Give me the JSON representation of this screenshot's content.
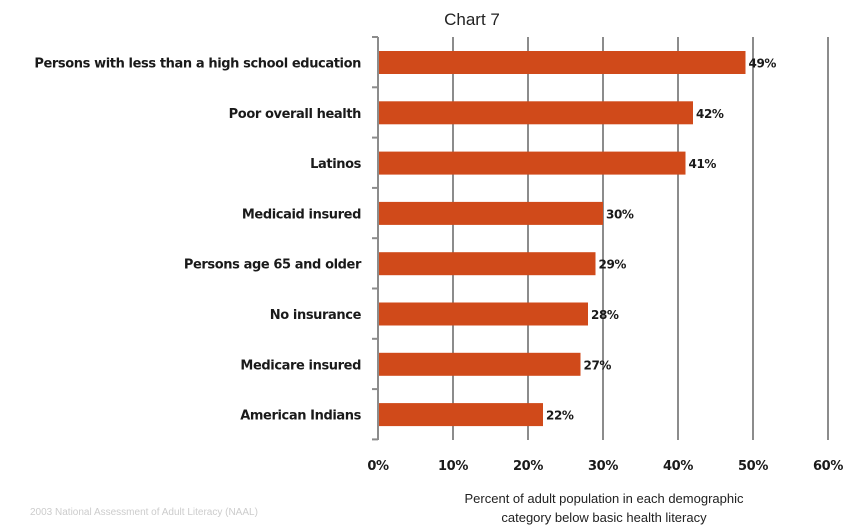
{
  "chart_data": {
    "type": "bar",
    "orientation": "horizontal",
    "title": "Chart  7",
    "categories": [
      "Persons with less than a high school education",
      "Poor overall health",
      "Latinos",
      "Medicaid insured",
      "Persons age 65 and older",
      "No insurance",
      "Medicare insured",
      "American Indians"
    ],
    "values": [
      49,
      42,
      41,
      30,
      29,
      28,
      27,
      22
    ],
    "data_labels": [
      "49%",
      "42%",
      "41%",
      "30%",
      "29%",
      "28%",
      "27%",
      "22%"
    ],
    "x_ticks": [
      "0%",
      "10%",
      "20%",
      "30%",
      "40%",
      "50%",
      "60%"
    ],
    "xlim": [
      0,
      60
    ],
    "xlabel_line1": "Percent of adult population in each demographic",
    "xlabel_line2": "category below basic health literacy",
    "grid": true,
    "colors": {
      "bar": "#d04a1a",
      "grid": "#8c8c8c",
      "axis": "#8c8c8c"
    }
  },
  "footnote": "2003 National Assessment of Adult Literacy (NAAL)"
}
